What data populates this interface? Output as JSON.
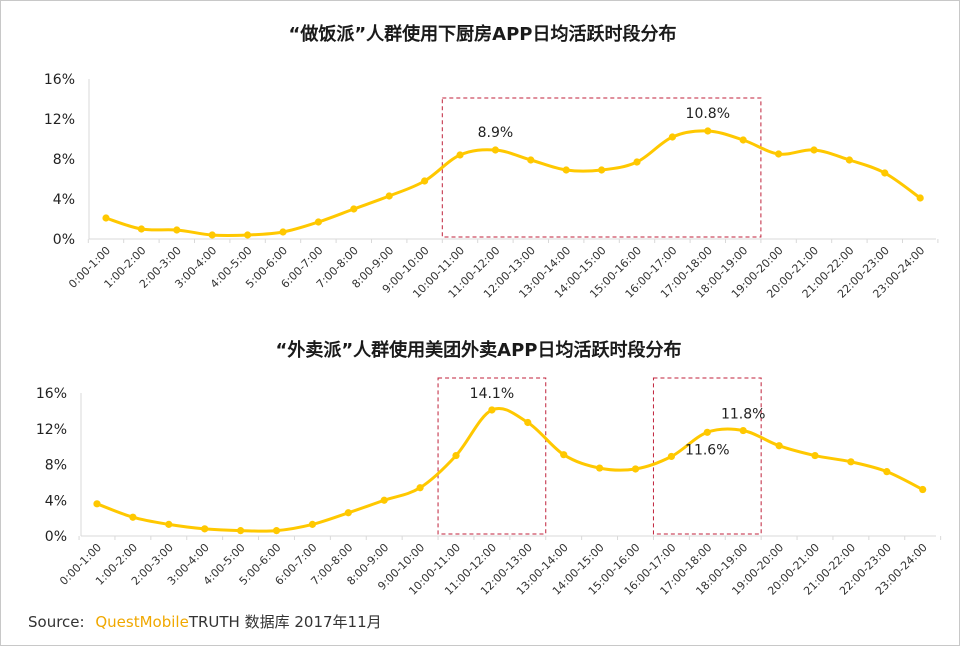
{
  "source": {
    "label": "Source:",
    "brand": "QuestMobile",
    "rest": "TRUTH 数据库 2017年11月"
  },
  "colors": {
    "line": "#FFC800",
    "highlight_box": "#C0223B",
    "axis": "#D9D9D9"
  },
  "chart_data": [
    {
      "type": "line",
      "title": "“做饭派”人群使用下厨房APP日均活跃时段分布",
      "ylim": [
        0,
        16
      ],
      "yticks": [
        "0%",
        "4%",
        "8%",
        "12%",
        "16%"
      ],
      "categories": [
        "0:00-1:00",
        "1:00-2:00",
        "2:00-3:00",
        "3:00-4:00",
        "4:00-5:00",
        "5:00-6:00",
        "6:00-7:00",
        "7:00-8:00",
        "8:00-9:00",
        "9:00-10:00",
        "10:00-11:00",
        "11:00-12:00",
        "12:00-13:00",
        "13:00-14:00",
        "14:00-15:00",
        "15:00-16:00",
        "16:00-17:00",
        "17:00-18:00",
        "18:00-19:00",
        "19:00-20:00",
        "20:00-21:00",
        "21:00-22:00",
        "22:00-23:00",
        "23:00-24:00"
      ],
      "series": [
        {
          "values": [
            2.1,
            1.0,
            0.9,
            0.4,
            0.4,
            0.7,
            1.7,
            3.0,
            4.3,
            5.8,
            8.4,
            8.9,
            7.9,
            6.9,
            6.9,
            7.7,
            10.2,
            10.8,
            9.9,
            8.5,
            8.9,
            7.9,
            6.6,
            4.1
          ]
        }
      ],
      "annotations": [
        {
          "index": 11,
          "text": "8.9%"
        },
        {
          "index": 17,
          "text": "10.8%"
        }
      ],
      "highlight_ranges": [
        {
          "from": "10:00-11:00",
          "to": "18:00-19:00"
        }
      ]
    },
    {
      "type": "line",
      "title": "“外卖派”人群使用美团外卖APP日均活跃时段分布",
      "ylim": [
        0,
        16
      ],
      "yticks": [
        "0%",
        "4%",
        "8%",
        "12%",
        "16%"
      ],
      "categories": [
        "0:00-1:00",
        "1:00-2:00",
        "2:00-3:00",
        "3:00-4:00",
        "4:00-5:00",
        "5:00-6:00",
        "6:00-7:00",
        "7:00-8:00",
        "8:00-9:00",
        "9:00-10:00",
        "10:00-11:00",
        "11:00-12:00",
        "12:00-13:00",
        "13:00-14:00",
        "14:00-15:00",
        "15:00-16:00",
        "16:00-17:00",
        "17:00-18:00",
        "18:00-19:00",
        "19:00-20:00",
        "20:00-21:00",
        "21:00-22:00",
        "22:00-23:00",
        "23:00-24:00"
      ],
      "series": [
        {
          "values": [
            3.6,
            2.1,
            1.3,
            0.8,
            0.6,
            0.6,
            1.3,
            2.6,
            4.0,
            5.4,
            9.0,
            14.1,
            12.7,
            9.1,
            7.6,
            7.5,
            8.9,
            11.6,
            11.8,
            10.1,
            9.0,
            8.3,
            7.2,
            5.2
          ]
        }
      ],
      "annotations": [
        {
          "index": 11,
          "text": "14.1%"
        },
        {
          "index": 17,
          "text": "11.6%"
        },
        {
          "index": 18,
          "text": "11.8%"
        }
      ],
      "highlight_ranges": [
        {
          "from": "10:00-11:00",
          "to": "12:00-13:00"
        },
        {
          "from": "16:00-17:00",
          "to": "18:00-19:00"
        }
      ]
    }
  ]
}
